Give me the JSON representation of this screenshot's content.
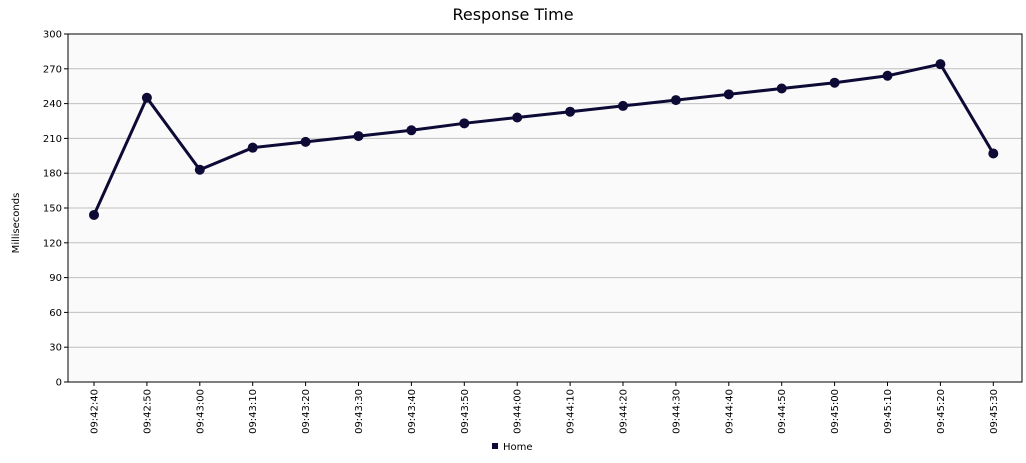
{
  "chart_data": {
    "type": "line",
    "title": "Response Time",
    "xlabel": "",
    "ylabel": "Milliseconds",
    "ylim": [
      0,
      300
    ],
    "y_ticks": [
      0,
      30,
      60,
      90,
      120,
      150,
      180,
      210,
      240,
      270,
      300
    ],
    "categories": [
      "09:42:40",
      "09:42:50",
      "09:43:00",
      "09:43:10",
      "09:43:20",
      "09:43:30",
      "09:43:40",
      "09:43:50",
      "09:44:00",
      "09:44:10",
      "09:44:20",
      "09:44:30",
      "09:44:40",
      "09:44:50",
      "09:45:00",
      "09:45:10",
      "09:45:20",
      "09:45:30"
    ],
    "series": [
      {
        "name": "Home",
        "color": "#0d0a35",
        "values": [
          144,
          245,
          183,
          202,
          207,
          212,
          217,
          223,
          228,
          233,
          238,
          243,
          248,
          253,
          258,
          264,
          274,
          197
        ]
      }
    ],
    "grid": true,
    "legend": "bottom",
    "plot_background": "#fafafa",
    "grid_color": "#c0c0c0"
  }
}
